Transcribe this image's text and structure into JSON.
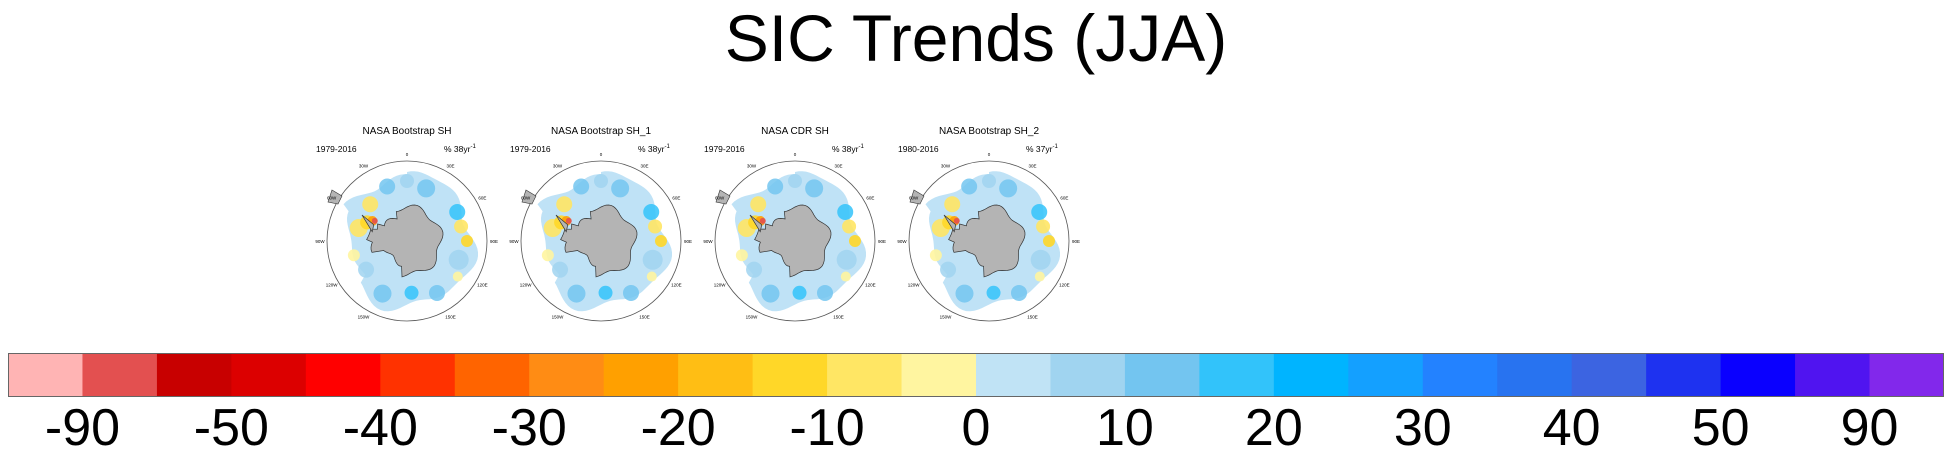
{
  "title": "SIC Trends (JJA)",
  "panels": [
    {
      "title": "NASA Bootstrap SH",
      "period": "1979-2016",
      "units": "% 38yr",
      "units_sup": "-1"
    },
    {
      "title": "NASA Bootstrap SH_1",
      "period": "1979-2016",
      "units": "% 38yr",
      "units_sup": "-1"
    },
    {
      "title": "NASA CDR SH",
      "period": "1979-2016",
      "units": "% 38yr",
      "units_sup": "-1"
    },
    {
      "title": "NASA Bootstrap SH_2",
      "period": "1980-2016",
      "units": "% 37yr",
      "units_sup": "-1"
    }
  ],
  "longitude_labels": [
    "0",
    "30E",
    "60E",
    "90E",
    "120E",
    "150E",
    "180",
    "150W",
    "120W",
    "90W",
    "60W",
    "30W"
  ],
  "chart_data": {
    "type": "heatmap",
    "title": "SIC Trends (JJA)",
    "projection": "south polar stereographic",
    "colorbar": {
      "colors": [
        "#ffb4b4",
        "#e35050",
        "#c80000",
        "#dc0000",
        "#ff0000",
        "#ff3200",
        "#ff6400",
        "#ff8c14",
        "#ffa000",
        "#ffbe14",
        "#ffd728",
        "#ffe664",
        "#fff5a0",
        "#c0e3f5",
        "#a0d4f0",
        "#73c5f0",
        "#32c3fa",
        "#00b4ff",
        "#14a0ff",
        "#2382ff",
        "#2873f0",
        "#3c64e1",
        "#1e32f0",
        "#0a00ff",
        "#5014f0",
        "#8228eb"
      ],
      "tick_labels": [
        "-90",
        "-50",
        "-40",
        "-30",
        "-20",
        "-10",
        "0",
        "10",
        "20",
        "30",
        "40",
        "50",
        "90"
      ]
    }
  }
}
